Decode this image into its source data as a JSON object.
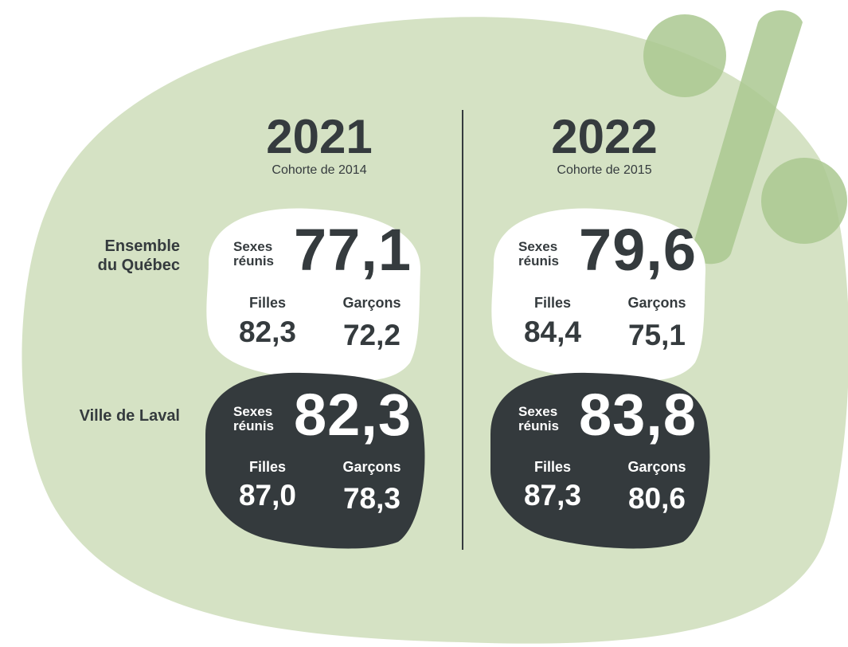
{
  "colors": {
    "background_blob": "#d5e2c4",
    "percent_symbol": "#aac890",
    "white_blob": "#ffffff",
    "dark_blob": "#343a3d",
    "text_dark": "#353b3e",
    "divider": "#353b3e"
  },
  "decoration": "percent-sign",
  "columns": [
    {
      "year": "2021",
      "cohort": "Cohorte de 2014",
      "quebec": {
        "combined_label": "Sexes\nréunis",
        "combined": "77,1",
        "girls_label": "Filles",
        "girls": "82,3",
        "boys_label": "Garçons",
        "boys": "72,2"
      },
      "laval": {
        "combined_label": "Sexes\nréunis",
        "combined": "82,3",
        "girls_label": "Filles",
        "girls": "87,0",
        "boys_label": "Garçons",
        "boys": "78,3"
      }
    },
    {
      "year": "2022",
      "cohort": "Cohorte de 2015",
      "quebec": {
        "combined_label": "Sexes\nréunis",
        "combined": "79,6",
        "girls_label": "Filles",
        "girls": "84,4",
        "boys_label": "Garçons",
        "boys": "75,1"
      },
      "laval": {
        "combined_label": "Sexes\nréunis",
        "combined": "83,8",
        "girls_label": "Filles",
        "girls": "87,3",
        "boys_label": "Garçons",
        "boys": "80,6"
      }
    }
  ],
  "rows": {
    "quebec_label": "Ensemble\ndu Québec",
    "laval_label": "Ville de Laval"
  }
}
